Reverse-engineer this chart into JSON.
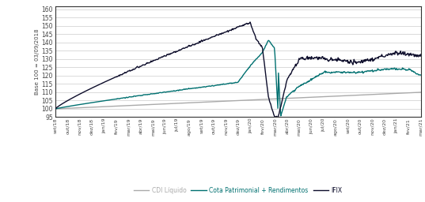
{
  "ylabel": "Base 100 = 03/09/2018",
  "ylim": [
    95,
    162
  ],
  "yticks": [
    95,
    100,
    105,
    110,
    115,
    120,
    125,
    130,
    135,
    140,
    145,
    150,
    155,
    160
  ],
  "x_labels": [
    "set/18",
    "out/18",
    "nov/18",
    "dez/18",
    "jan/19",
    "fev/19",
    "mar/19",
    "abr/19",
    "mai/19",
    "jun/19",
    "jul/19",
    "ago/19",
    "set/19",
    "out/19",
    "nov/19",
    "dez/19",
    "jan/20",
    "fev/20",
    "mar/20",
    "abr/20",
    "mai/20",
    "jun/20",
    "jul/20",
    "ago/20",
    "set/20",
    "out/20",
    "nov/20",
    "dez/20",
    "jan/21",
    "fev/21",
    "mar/21"
  ],
  "cdi_color": "#aaaaaa",
  "cota_color": "#007070",
  "ifix_color": "#0d0d2b",
  "grid_color": "#cccccc",
  "background": "#ffffff",
  "legend_cdi": "CDI Líquido",
  "legend_cota": "Cota Patrimonial + Rendimentos",
  "legend_ifix": "IFIX",
  "border_color": "#333333"
}
